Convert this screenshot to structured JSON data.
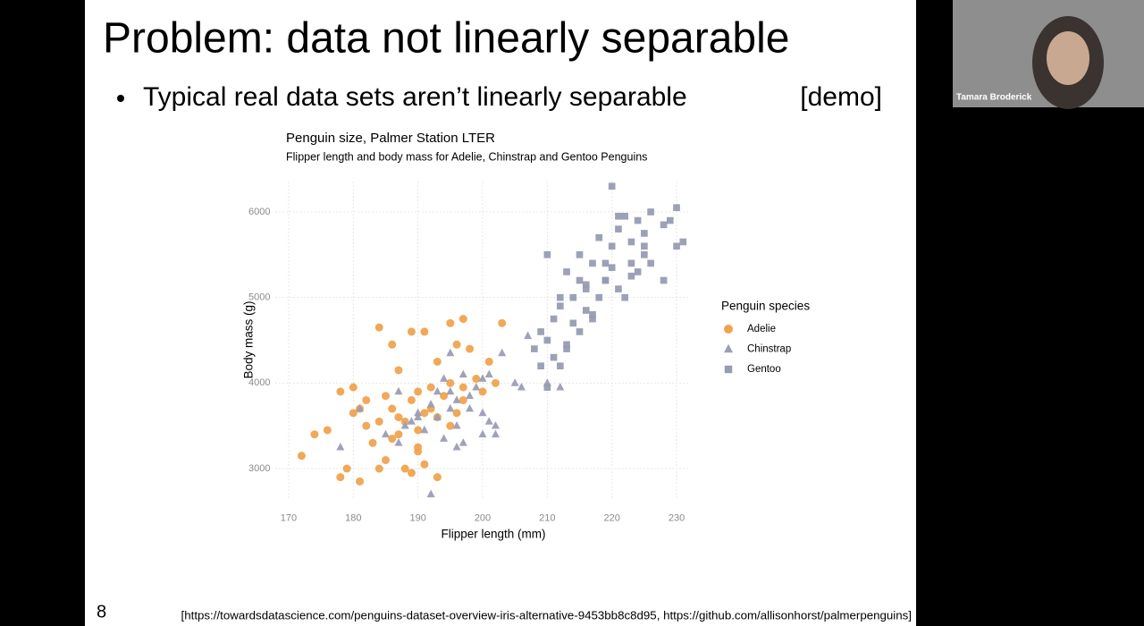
{
  "slide": {
    "title": "Problem: data not linearly separable",
    "bullet": "Typical real data sets aren’t linearly separable",
    "demo": "[demo]",
    "page_number": "8",
    "citation": "[https://towardsdatascience.com/penguins-dataset-overview-iris-alternative-9453bb8c8d95, https://github.com/allisonhorst/palmerpenguins]"
  },
  "webcam": {
    "name": "Tamara Broderick"
  },
  "chart_data": {
    "type": "scatter",
    "title": "Penguin size, Palmer Station LTER",
    "subtitle": "Flipper length and body mass for Adelie, Chinstrap and Gentoo Penguins",
    "x_label": "Flipper length (mm)",
    "y_label": "Body mass (g)",
    "legend_title": "Penguin species",
    "legend": "right",
    "grid": true,
    "xlim": [
      168,
      232
    ],
    "xticks": [
      170,
      180,
      190,
      200,
      210,
      220,
      230
    ],
    "ylim": [
      2650,
      6350
    ],
    "yticks": [
      3000,
      4000,
      5000,
      6000
    ],
    "series": [
      {
        "name": "Adelie",
        "color": "#f0a34e",
        "marker": "circle",
        "x": [
          172,
          174,
          176,
          178,
          178,
          179,
          180,
          180,
          181,
          181,
          182,
          182,
          183,
          184,
          184,
          185,
          185,
          186,
          186,
          187,
          187,
          188,
          188,
          189,
          189,
          190,
          190,
          190,
          191,
          191,
          192,
          192,
          193,
          193,
          194,
          195,
          195,
          196,
          196,
          197,
          197,
          198,
          199,
          200,
          201,
          202,
          203,
          184,
          186,
          190,
          191,
          193,
          195,
          197,
          189,
          187
        ],
        "values": [
          3150,
          3400,
          3450,
          3900,
          2900,
          3000,
          3950,
          3650,
          2850,
          3700,
          3500,
          3800,
          3300,
          4650,
          3550,
          3100,
          3850,
          3700,
          3350,
          4150,
          3400,
          3550,
          3000,
          4600,
          3800,
          3900,
          3450,
          3250,
          4600,
          3050,
          3700,
          3950,
          2900,
          3600,
          3850,
          4000,
          4700,
          3650,
          4450,
          4750,
          3800,
          4400,
          4050,
          3900,
          4250,
          4000,
          4700,
          3000,
          4450,
          3200,
          3650,
          4250,
          3500,
          3950,
          2950,
          3600
        ]
      },
      {
        "name": "Chinstrap",
        "color": "#9a9db5",
        "marker": "triangle",
        "x": [
          178,
          181,
          185,
          187,
          188,
          189,
          190,
          191,
          192,
          193,
          193,
          194,
          195,
          195,
          196,
          196,
          197,
          197,
          198,
          199,
          200,
          200,
          201,
          201,
          202,
          203,
          205,
          206,
          207,
          210,
          187,
          190,
          192,
          194,
          196,
          198,
          200,
          202,
          195,
          212
        ],
        "values": [
          3250,
          3700,
          3400,
          3300,
          3500,
          3550,
          3650,
          3450,
          2700,
          3600,
          3900,
          3350,
          4350,
          3700,
          3800,
          3500,
          3300,
          4100,
          3700,
          3950,
          3400,
          4050,
          3550,
          4100,
          3400,
          4350,
          4000,
          3950,
          4550,
          4000,
          3900,
          3600,
          3750,
          4050,
          3250,
          3850,
          3650,
          3500,
          3900,
          3950
        ]
      },
      {
        "name": "Gentoo",
        "color": "#989cb2",
        "marker": "square",
        "x": [
          208,
          209,
          209,
          210,
          210,
          211,
          211,
          212,
          212,
          213,
          213,
          214,
          214,
          215,
          215,
          216,
          216,
          217,
          217,
          218,
          218,
          219,
          219,
          220,
          220,
          221,
          221,
          222,
          222,
          223,
          223,
          224,
          224,
          225,
          225,
          226,
          226,
          228,
          228,
          229,
          230,
          230,
          231,
          210,
          212,
          215,
          217,
          219,
          221,
          223,
          225,
          213,
          216,
          220
        ],
        "values": [
          4400,
          4200,
          4600,
          3950,
          4500,
          4750,
          4300,
          4900,
          4200,
          4400,
          5300,
          4700,
          5000,
          4600,
          5500,
          5100,
          4850,
          5400,
          4800,
          5700,
          5000,
          5400,
          5200,
          6300,
          5600,
          5100,
          5800,
          5000,
          5950,
          5400,
          5650,
          5300,
          5900,
          5500,
          5750,
          5400,
          6000,
          5850,
          5200,
          5900,
          6050,
          5600,
          5650,
          5500,
          5000,
          5200,
          4750,
          5200,
          5950,
          5250,
          5600,
          4450,
          5150,
          5350
        ]
      }
    ]
  }
}
